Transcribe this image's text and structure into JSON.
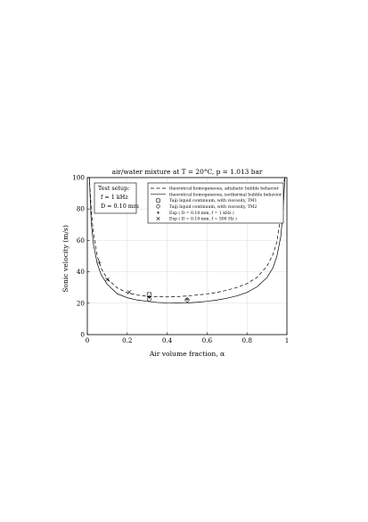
{
  "chart_data": {
    "type": "line",
    "title": "air/water mixture at T = 20°C, p = 1.013 bar",
    "xlabel": "Air volume fraction, α",
    "ylabel": "Sonic velocity (m/s)",
    "xlim": [
      0,
      1
    ],
    "ylim": [
      0,
      100
    ],
    "xticks": [
      "0",
      "0.2",
      "0.4",
      "0.6",
      "0.8",
      "1"
    ],
    "yticks": [
      "0",
      "20",
      "40",
      "60",
      "80",
      "100"
    ],
    "grid": true,
    "legend_position": "top-right",
    "annotation": {
      "lines": [
        "Test setup:",
        "f = 1 kHz",
        "D = 0.10 mm"
      ]
    },
    "series": [
      {
        "name": "theoretical homogeneous, adiabatic bubble behavior",
        "kind": "line",
        "style": "dashed",
        "x": [
          0.005,
          0.01,
          0.02,
          0.03,
          0.05,
          0.07,
          0.1,
          0.15,
          0.2,
          0.25,
          0.3,
          0.35,
          0.4,
          0.45,
          0.5,
          0.55,
          0.6,
          0.65,
          0.7,
          0.75,
          0.8,
          0.85,
          0.9,
          0.93,
          0.95,
          0.97,
          0.98,
          0.99,
          0.995
        ],
        "y": [
          100,
          100,
          79,
          65,
          50,
          42,
          35.6,
          29.7,
          26.7,
          25.2,
          24.4,
          24.1,
          24.0,
          24.2,
          24.6,
          25.2,
          25.9,
          26.9,
          28.3,
          30.0,
          32.5,
          36.4,
          43.5,
          51,
          59,
          77,
          95,
          100,
          100
        ]
      },
      {
        "name": "theoretical homogeneous, isothermal bubble behavior",
        "kind": "line",
        "style": "solid",
        "x": [
          0.005,
          0.01,
          0.02,
          0.03,
          0.05,
          0.07,
          0.1,
          0.15,
          0.2,
          0.25,
          0.3,
          0.35,
          0.4,
          0.45,
          0.5,
          0.55,
          0.6,
          0.65,
          0.7,
          0.75,
          0.8,
          0.85,
          0.9,
          0.93,
          0.95,
          0.97,
          0.98,
          0.99,
          0.995
        ],
        "y": [
          100,
          100,
          71,
          58,
          45,
          38,
          32,
          26,
          23.5,
          22.0,
          21.2,
          20.5,
          20.2,
          20.1,
          20.2,
          20.6,
          21.2,
          22.0,
          23.2,
          24.7,
          26.9,
          30.4,
          36.3,
          42.5,
          50,
          63,
          78,
          100,
          100
        ]
      },
      {
        "name": "Taiji liquid continuum, with viscosity, TM1",
        "kind": "scatter",
        "marker": "square",
        "x": [
          0.31
        ],
        "y": [
          25.5
        ]
      },
      {
        "name": "Taiji liquid continuum, with viscosity, TM2",
        "kind": "scatter",
        "marker": "circle",
        "x": [
          0.31,
          0.5
        ],
        "y": [
          22.5,
          22.0
        ]
      },
      {
        "name": "Exp ( D = 0.10 mm, f = 1 kHz )",
        "kind": "scatter",
        "marker": "plus",
        "x": [
          0.06,
          0.31,
          0.5
        ],
        "y": [
          46,
          24,
          22.5
        ]
      },
      {
        "name": "Exp ( D = 0.10 mm, f = 500 Hz )",
        "kind": "scatter",
        "marker": "x",
        "x": [
          0.1,
          0.21
        ],
        "y": [
          35,
          27
        ]
      }
    ]
  }
}
